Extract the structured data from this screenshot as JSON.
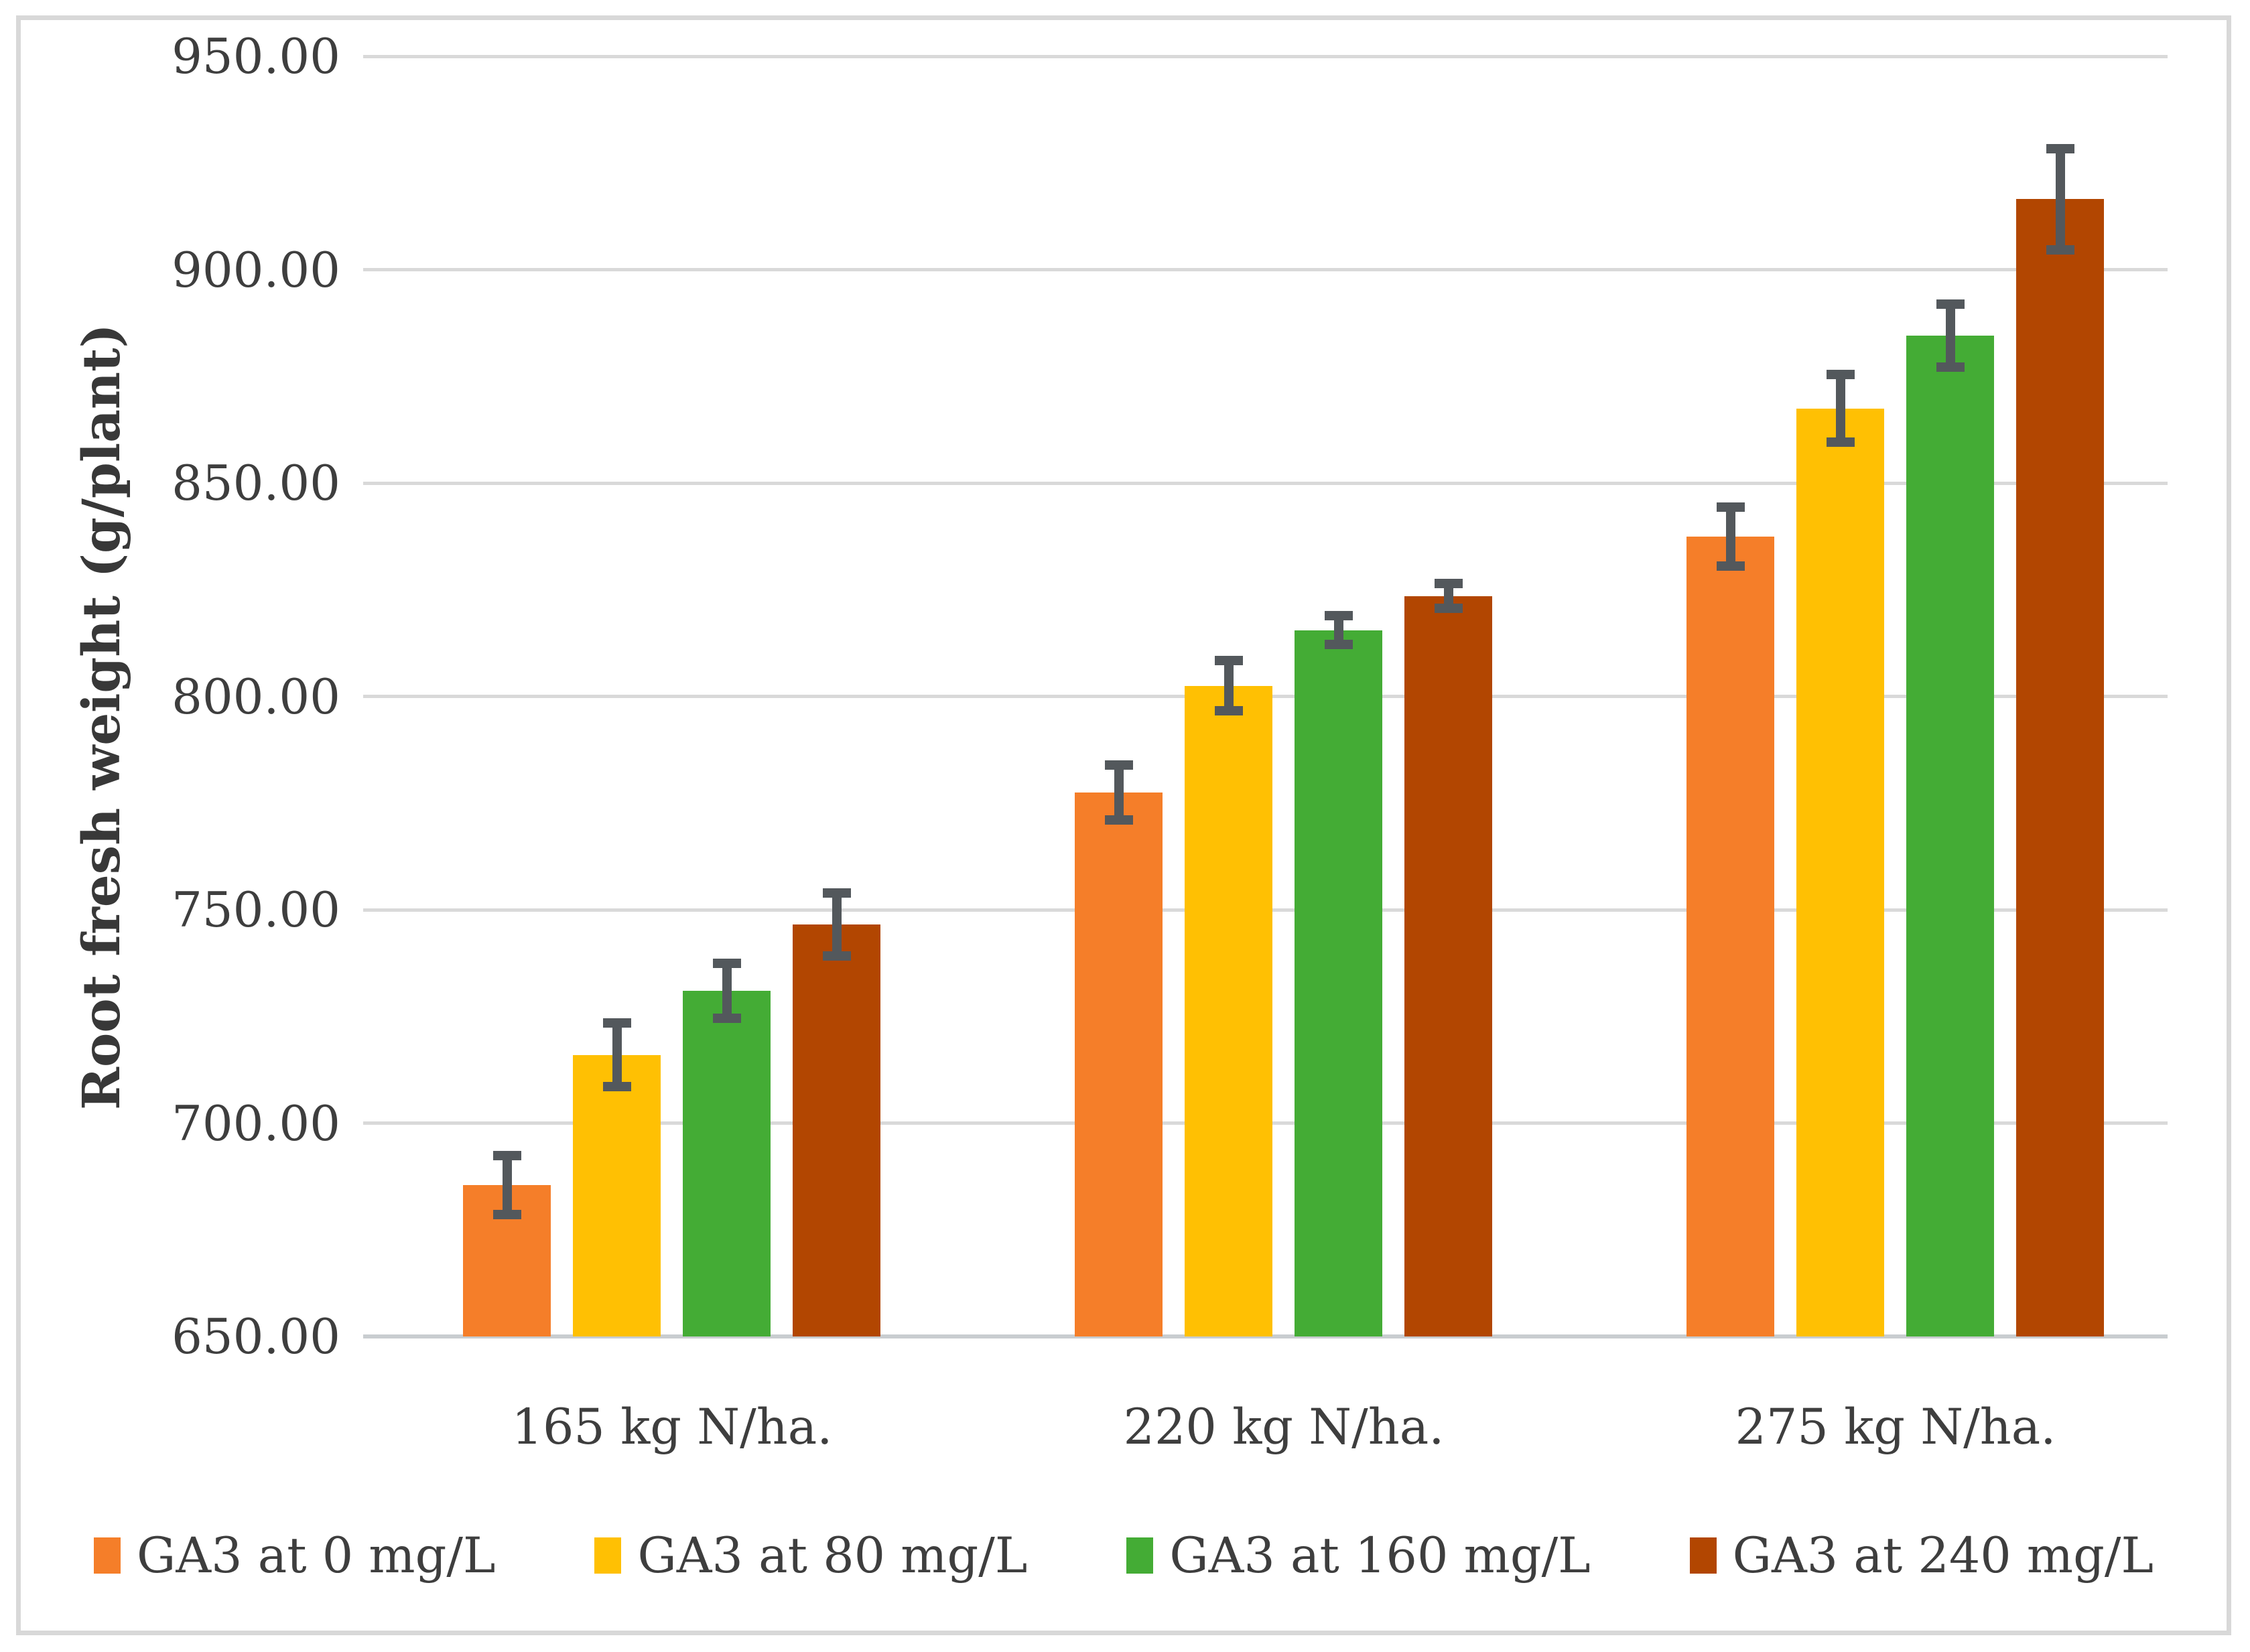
{
  "figure": {
    "y_axis_title": "Root fresh weight (g/plant)"
  },
  "chart_data": {
    "type": "bar",
    "title": "",
    "xlabel": "",
    "ylabel": "Root fresh weight (g/plant)",
    "ylim": [
      650,
      950
    ],
    "ytick_step": 50,
    "ytick_values": [
      950,
      900,
      850,
      800,
      750,
      700,
      650
    ],
    "ytick_labels": [
      "950.00",
      "900.00",
      "850.00",
      "800.00",
      "750.00",
      "700.00",
      "650.00"
    ],
    "grid": true,
    "legend_position": "bottom",
    "categories": [
      "165 kg N/ha.",
      "220 kg N/ha.",
      "275 kg N/ha."
    ],
    "series": [
      {
        "name": "GA3 at 0 mg/L",
        "color": "#f57e29",
        "values": [
          685.5,
          777.5,
          837.5
        ],
        "errors": [
          8.0,
          7.5,
          8.0
        ]
      },
      {
        "name": "GA3 at 80 mg/L",
        "color": "#ffc003",
        "values": [
          716.0,
          802.5,
          867.5
        ],
        "errors": [
          8.5,
          7.0,
          9.0
        ]
      },
      {
        "name": "GA3 at 160 mg/L",
        "color": "#44ac35",
        "values": [
          731.0,
          815.5,
          884.5
        ],
        "errors": [
          7.5,
          4.5,
          8.5
        ]
      },
      {
        "name": "GA3 at 240 mg/L",
        "color": "#b24601",
        "values": [
          746.5,
          823.5,
          916.5
        ],
        "errors": [
          8.5,
          4.0,
          13.0
        ]
      }
    ],
    "colors": {
      "gridline": "#d9d9d9",
      "axis_line": "#c9cdd0",
      "error_bar": "#53585c",
      "tick_text": "#3e3e3e",
      "frame_border": "#d8d8d8"
    }
  }
}
